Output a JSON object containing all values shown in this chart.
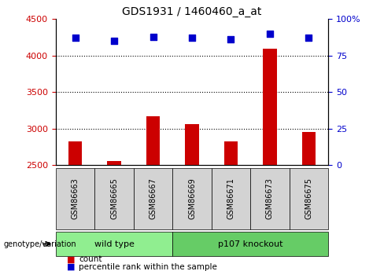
{
  "title": "GDS1931 / 1460460_a_at",
  "samples": [
    "GSM86663",
    "GSM86665",
    "GSM86667",
    "GSM86669",
    "GSM86671",
    "GSM86673",
    "GSM86675"
  ],
  "count_values": [
    2830,
    2560,
    3170,
    3060,
    2830,
    4090,
    2960
  ],
  "percentile_values": [
    87,
    85,
    88,
    87,
    86,
    90,
    87
  ],
  "ylim_left": [
    2500,
    4500
  ],
  "ylim_right": [
    0,
    100
  ],
  "yticks_left": [
    2500,
    3000,
    3500,
    4000,
    4500
  ],
  "yticks_right": [
    0,
    25,
    50,
    75,
    100
  ],
  "bar_color": "#cc0000",
  "dot_color": "#0000cc",
  "bar_bottom": 2500,
  "groups": [
    {
      "label": "wild type",
      "start": 0,
      "end": 3,
      "color": "#90ee90"
    },
    {
      "label": "p107 knockout",
      "start": 3,
      "end": 7,
      "color": "#66cc66"
    }
  ],
  "group_row_label": "genotype/variation",
  "legend_count_label": "count",
  "legend_percentile_label": "percentile rank within the sample",
  "left_tick_color": "#cc0000",
  "right_tick_color": "#0000cc",
  "sample_box_color": "#d3d3d3",
  "plot_bg_color": "#ffffff"
}
